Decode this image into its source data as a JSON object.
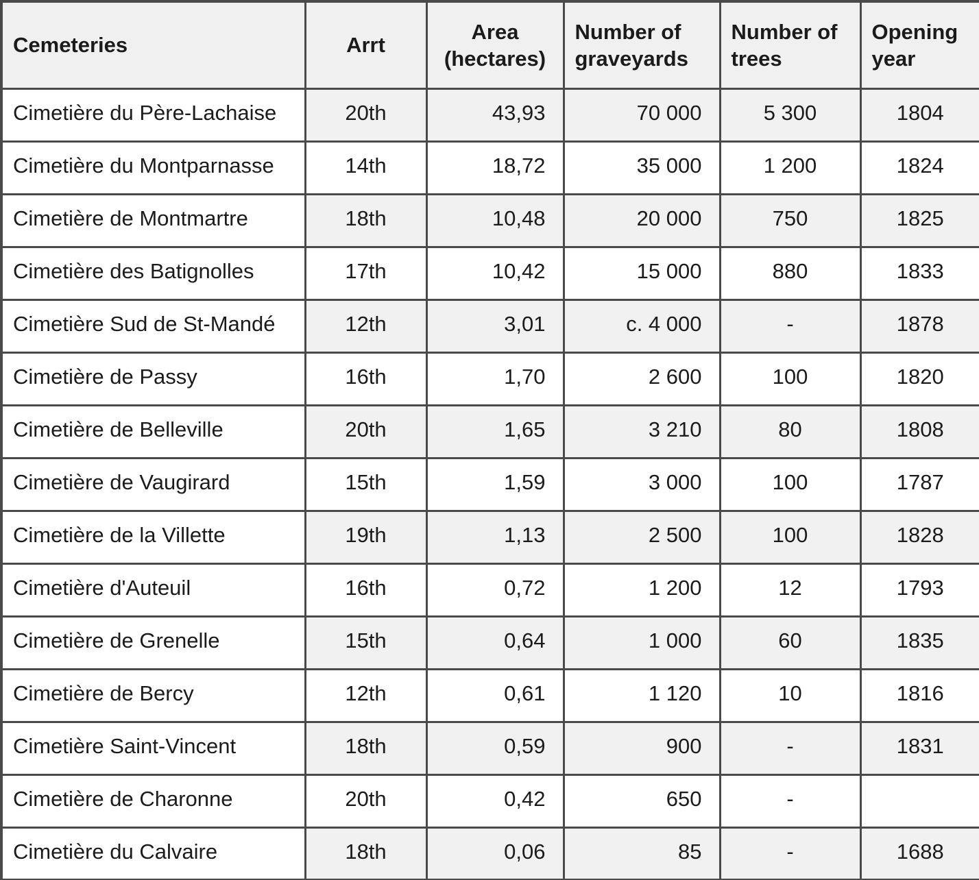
{
  "table": {
    "columns": [
      {
        "label": "Cemeteries"
      },
      {
        "label": "Arrt"
      },
      {
        "label": "Area (hectares)"
      },
      {
        "label": "Number of graveyards"
      },
      {
        "label": "Number of trees"
      },
      {
        "label": "Opening year"
      }
    ],
    "rows": [
      [
        "Cimetière du Père-Lachaise",
        "20th",
        "43,93",
        "70 000",
        "5 300",
        "1804"
      ],
      [
        "Cimetière du Montparnasse",
        "14th",
        "18,72",
        "35 000",
        "1 200",
        "1824"
      ],
      [
        "Cimetière de Montmartre",
        "18th",
        "10,48",
        "20 000",
        "750",
        "1825"
      ],
      [
        "Cimetière des Batignolles",
        "17th",
        "10,42",
        "15 000",
        "880",
        "1833"
      ],
      [
        "Cimetière Sud de St-Mandé",
        "12th",
        "3,01",
        "c. 4 000",
        "-",
        "1878"
      ],
      [
        "Cimetière de Passy",
        "16th",
        "1,70",
        "2 600",
        "100",
        "1820"
      ],
      [
        "Cimetière de Belleville",
        "20th",
        "1,65",
        "3 210",
        "80",
        "1808"
      ],
      [
        "Cimetière de Vaugirard",
        "15th",
        "1,59",
        "3 000",
        "100",
        "1787"
      ],
      [
        "Cimetière de la Villette",
        "19th",
        "1,13",
        "2 500",
        "100",
        "1828"
      ],
      [
        "Cimetière d'Auteuil",
        "16th",
        "0,72",
        "1 200",
        "12",
        "1793"
      ],
      [
        "Cimetière de Grenelle",
        "15th",
        "0,64",
        "1 000",
        "60",
        "1835"
      ],
      [
        "Cimetière de Bercy",
        "12th",
        "0,61",
        "1 120",
        "10",
        "1816"
      ],
      [
        "Cimetière Saint-Vincent",
        "18th",
        "0,59",
        "900",
        "-",
        "1831"
      ],
      [
        "Cimetière de Charonne",
        "20th",
        "0,42",
        "650",
        "-",
        ""
      ],
      [
        "Cimetière du Calvaire",
        "18th",
        "0,06",
        "85",
        "-",
        "1688"
      ]
    ],
    "colors": {
      "border": "#4a4a4a",
      "header_background": "#f0f0f0",
      "stripe_background": "#f1f1f1",
      "text": "#1b1b1b",
      "page_background": "#ffffff"
    }
  }
}
